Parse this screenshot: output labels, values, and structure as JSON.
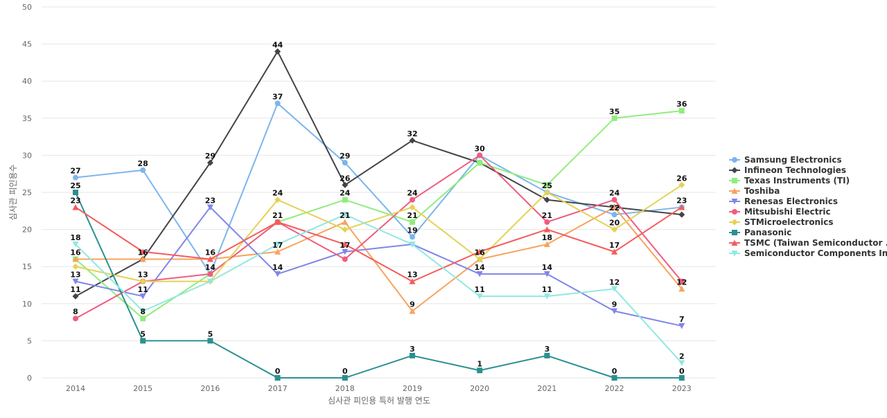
{
  "chart_data": {
    "type": "line",
    "title": "",
    "xlabel": "심사관 피인용 특허 발행 연도",
    "ylabel": "심사관 피인용수",
    "ylim": [
      0,
      50
    ],
    "y_ticks": [
      0,
      5,
      10,
      15,
      20,
      25,
      30,
      35,
      40,
      45,
      50
    ],
    "grid": true,
    "legend_position": "right",
    "x": [
      "2014",
      "2015",
      "2016",
      "2017",
      "2018",
      "2019",
      "2020",
      "2021",
      "2022",
      "2023"
    ],
    "series": [
      {
        "name": "Samsung Electronics",
        "color": "#7cb5ec",
        "marker": "circle",
        "values": [
          27,
          28,
          14,
          37,
          29,
          19,
          30,
          25,
          22,
          23
        ]
      },
      {
        "name": "Infineon Technologies",
        "color": "#434348",
        "marker": "diamond",
        "values": [
          11,
          16,
          29,
          44,
          26,
          32,
          29,
          24,
          23,
          22
        ]
      },
      {
        "name": "Texas Instruments (TI)",
        "color": "#90ed7d",
        "marker": "square",
        "values": [
          16,
          8,
          14,
          21,
          24,
          21,
          29,
          26,
          35,
          36
        ]
      },
      {
        "name": "Toshiba",
        "color": "#f7a35c",
        "marker": "triangle",
        "values": [
          16,
          16,
          16,
          17,
          21,
          9,
          16,
          18,
          23,
          12
        ]
      },
      {
        "name": "Renesas Electronics",
        "color": "#8085e9",
        "marker": "triangle-down",
        "values": [
          13,
          11,
          23,
          14,
          17,
          18,
          14,
          14,
          9,
          7
        ]
      },
      {
        "name": "Mitsubishi Electric",
        "color": "#f15c80",
        "marker": "circle",
        "values": [
          8,
          13,
          14,
          21,
          16,
          24,
          30,
          21,
          24,
          13
        ]
      },
      {
        "name": "STMicroelectronics",
        "color": "#e4d354",
        "marker": "diamond",
        "values": [
          15,
          13,
          13,
          24,
          20,
          23,
          16,
          25,
          20,
          26
        ]
      },
      {
        "name": "Panasonic",
        "color": "#2b908f",
        "marker": "square",
        "values": [
          25,
          5,
          5,
          0,
          0,
          3,
          1,
          3,
          0,
          0
        ]
      },
      {
        "name": "TSMC (Taiwan Semiconductor ...",
        "color": "#f45b5b",
        "marker": "triangle",
        "values": [
          23,
          17,
          16,
          21,
          18,
          13,
          17,
          20,
          17,
          23
        ]
      },
      {
        "name": "Semiconductor Components In...",
        "color": "#91e8e1",
        "marker": "triangle-down",
        "values": [
          18,
          9,
          13,
          18,
          22,
          18,
          11,
          11,
          12,
          2
        ]
      }
    ],
    "data_labels": [
      {
        "x": "2014",
        "value": "27"
      },
      {
        "x": "2014",
        "value": "25"
      },
      {
        "x": "2014",
        "value": "23"
      },
      {
        "x": "2014",
        "value": "18"
      },
      {
        "x": "2014",
        "value": "16"
      },
      {
        "x": "2014",
        "value": "13"
      },
      {
        "x": "2014",
        "value": "11"
      },
      {
        "x": "2014",
        "value": "8"
      },
      {
        "x": "2015",
        "value": "28"
      },
      {
        "x": "2015",
        "value": "16"
      },
      {
        "x": "2015",
        "value": "13"
      },
      {
        "x": "2015",
        "value": "11"
      },
      {
        "x": "2015",
        "value": "8"
      },
      {
        "x": "2015",
        "value": "5"
      },
      {
        "x": "2016",
        "value": "29"
      },
      {
        "x": "2016",
        "value": "23"
      },
      {
        "x": "2016",
        "value": "16"
      },
      {
        "x": "2016",
        "value": "14"
      },
      {
        "x": "2016",
        "value": "5"
      },
      {
        "x": "2017",
        "value": "44"
      },
      {
        "x": "2017",
        "value": "37"
      },
      {
        "x": "2017",
        "value": "24"
      },
      {
        "x": "2017",
        "value": "21"
      },
      {
        "x": "2017",
        "value": "17"
      },
      {
        "x": "2017",
        "value": "14"
      },
      {
        "x": "2017",
        "value": "0"
      },
      {
        "x": "2018",
        "value": "29"
      },
      {
        "x": "2018",
        "value": "26"
      },
      {
        "x": "2018",
        "value": "24"
      },
      {
        "x": "2018",
        "value": "21"
      },
      {
        "x": "2018",
        "value": "17"
      },
      {
        "x": "2018",
        "value": "0"
      },
      {
        "x": "2019",
        "value": "32"
      },
      {
        "x": "2019",
        "value": "24"
      },
      {
        "x": "2019",
        "value": "21"
      },
      {
        "x": "2019",
        "value": "19"
      },
      {
        "x": "2019",
        "value": "13"
      },
      {
        "x": "2019",
        "value": "9"
      },
      {
        "x": "2019",
        "value": "3"
      },
      {
        "x": "2020",
        "value": "30"
      },
      {
        "x": "2020",
        "value": "16"
      },
      {
        "x": "2020",
        "value": "14"
      },
      {
        "x": "2020",
        "value": "11"
      },
      {
        "x": "2020",
        "value": "1"
      },
      {
        "x": "2021",
        "value": "25"
      },
      {
        "x": "2021",
        "value": "21"
      },
      {
        "x": "2021",
        "value": "18"
      },
      {
        "x": "2021",
        "value": "14"
      },
      {
        "x": "2021",
        "value": "11"
      },
      {
        "x": "2021",
        "value": "3"
      },
      {
        "x": "2022",
        "value": "35"
      },
      {
        "x": "2022",
        "value": "24"
      },
      {
        "x": "2022",
        "value": "22"
      },
      {
        "x": "2022",
        "value": "20"
      },
      {
        "x": "2022",
        "value": "17"
      },
      {
        "x": "2022",
        "value": "12"
      },
      {
        "x": "2022",
        "value": "9"
      },
      {
        "x": "2022",
        "value": "0"
      },
      {
        "x": "2023",
        "value": "36"
      },
      {
        "x": "2023",
        "value": "26"
      },
      {
        "x": "2023",
        "value": "23"
      },
      {
        "x": "2023",
        "value": "12"
      },
      {
        "x": "2023",
        "value": "7"
      },
      {
        "x": "2023",
        "value": "2"
      },
      {
        "x": "2023",
        "value": "0"
      }
    ]
  }
}
